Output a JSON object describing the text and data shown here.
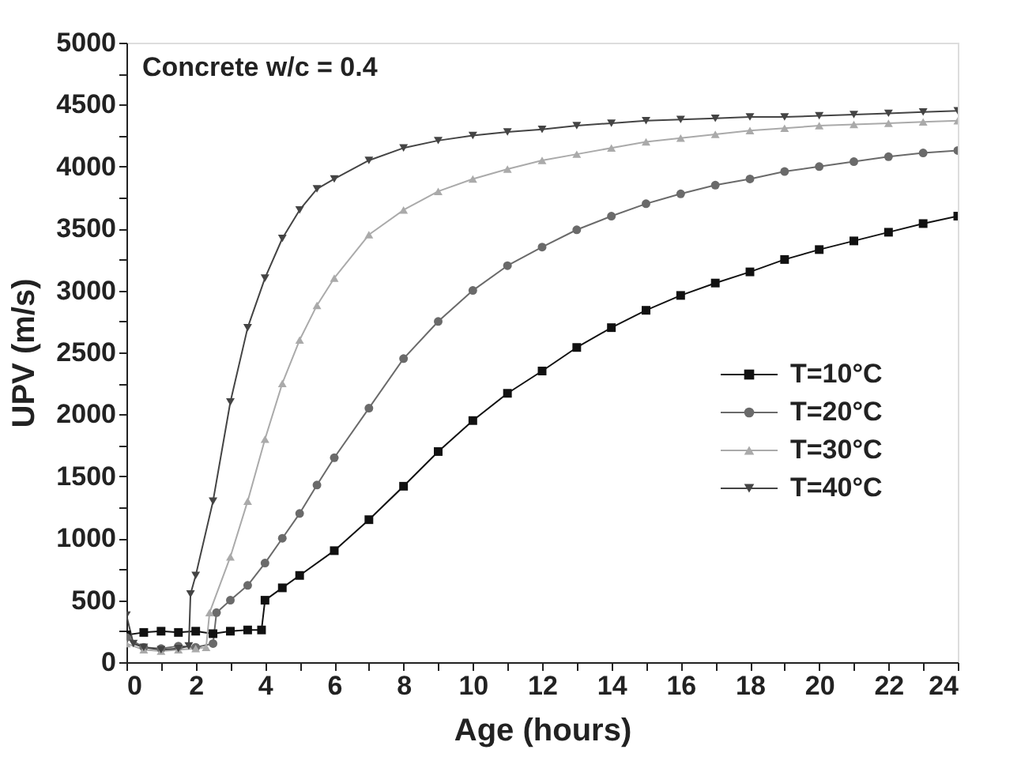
{
  "chart_data": {
    "type": "line",
    "xlabel": "Age (hours)",
    "ylabel": "UPV (m/s)",
    "annotations": [
      "Concrete w/c = 0.4"
    ],
    "xlim": [
      0,
      24
    ],
    "ylim": [
      0,
      5000
    ],
    "xticks": [
      0,
      {
        "value": 1,
        "label": null
      },
      2,
      {
        "value": 3,
        "label": null
      },
      4,
      {
        "value": 5,
        "label": null
      },
      6,
      {
        "value": 7,
        "label": null
      },
      8,
      {
        "value": 9,
        "label": null
      },
      10,
      {
        "value": 11,
        "label": null
      },
      12,
      {
        "value": 13,
        "label": null
      },
      14,
      {
        "value": 15,
        "label": null
      },
      16,
      {
        "value": 17,
        "label": null
      },
      18,
      {
        "value": 19,
        "label": null
      },
      20,
      {
        "value": 21,
        "label": null
      },
      22,
      {
        "value": 23,
        "label": null
      },
      24
    ],
    "yticks": [
      0,
      {
        "value": 250,
        "label": null
      },
      500,
      {
        "value": 750,
        "label": null
      },
      1000,
      {
        "value": 1250,
        "label": null
      },
      1500,
      {
        "value": 1750,
        "label": null
      },
      2000,
      {
        "value": 2250,
        "label": null
      },
      2500,
      {
        "value": 2750,
        "label": null
      },
      3000,
      {
        "value": 3250,
        "label": null
      },
      3500,
      {
        "value": 3750,
        "label": null
      },
      4000,
      {
        "value": 4250,
        "label": null
      },
      4500,
      {
        "value": 4750,
        "label": null
      },
      5000
    ],
    "legend": "right",
    "grid": false,
    "line_style": "solid",
    "series": [
      {
        "name": "T=10°C",
        "color": "#111111",
        "marker": "square",
        "x": [
          0,
          0.5,
          1,
          1.5,
          2,
          2.5,
          3,
          3.5,
          3.9,
          4,
          4.5,
          5,
          6,
          7,
          8,
          9,
          10,
          11,
          12,
          13,
          14,
          15,
          16,
          17,
          18,
          19,
          20,
          21,
          22,
          23,
          24
        ],
        "values": [
          220,
          240,
          250,
          240,
          250,
          230,
          250,
          260,
          260,
          500,
          600,
          700,
          900,
          1150,
          1420,
          1700,
          1950,
          2170,
          2350,
          2540,
          2700,
          2840,
          2960,
          3060,
          3150,
          3250,
          3330,
          3400,
          3470,
          3540,
          3600
        ]
      },
      {
        "name": "T=20°C",
        "color": "#6a6a6a",
        "marker": "circle",
        "x": [
          0,
          0.5,
          1,
          1.5,
          2,
          2.5,
          2.6,
          3,
          3.5,
          4,
          4.5,
          5,
          5.5,
          6,
          7,
          8,
          9,
          10,
          11,
          12,
          13,
          14,
          15,
          16,
          17,
          18,
          19,
          20,
          21,
          22,
          23,
          24
        ],
        "values": [
          200,
          120,
          110,
          130,
          120,
          150,
          400,
          500,
          620,
          800,
          1000,
          1200,
          1430,
          1650,
          2050,
          2450,
          2750,
          3000,
          3200,
          3350,
          3490,
          3600,
          3700,
          3780,
          3850,
          3900,
          3960,
          4000,
          4040,
          4080,
          4110,
          4130
        ]
      },
      {
        "name": "T=30°C",
        "color": "#aaaaaa",
        "marker": "triangle",
        "x": [
          0,
          0.5,
          1,
          1.5,
          2,
          2.3,
          2.4,
          3,
          3.5,
          4,
          4.5,
          5,
          5.5,
          6,
          7,
          8,
          9,
          10,
          11,
          12,
          13,
          14,
          15,
          16,
          17,
          18,
          19,
          20,
          21,
          22,
          23,
          24
        ],
        "values": [
          150,
          100,
          90,
          100,
          110,
          120,
          400,
          850,
          1300,
          1800,
          2250,
          2600,
          2880,
          3100,
          3450,
          3650,
          3800,
          3900,
          3980,
          4050,
          4100,
          4150,
          4200,
          4230,
          4260,
          4290,
          4310,
          4330,
          4340,
          4350,
          4360,
          4370
        ]
      },
      {
        "name": "T=40°C",
        "color": "#444444",
        "marker": "triangle-down",
        "x": [
          0,
          0.2,
          0.5,
          1,
          1.5,
          1.8,
          1.85,
          2,
          2.5,
          3,
          3.5,
          4,
          4.5,
          5,
          5.5,
          6,
          7,
          8,
          9,
          10,
          11,
          12,
          13,
          14,
          15,
          16,
          17,
          18,
          19,
          20,
          21,
          22,
          23,
          24
        ],
        "values": [
          380,
          150,
          120,
          100,
          110,
          130,
          550,
          700,
          1300,
          2100,
          2700,
          3100,
          3420,
          3650,
          3820,
          3900,
          4050,
          4150,
          4210,
          4250,
          4280,
          4300,
          4330,
          4350,
          4370,
          4380,
          4390,
          4400,
          4400,
          4410,
          4420,
          4430,
          4440,
          4450
        ]
      }
    ]
  }
}
